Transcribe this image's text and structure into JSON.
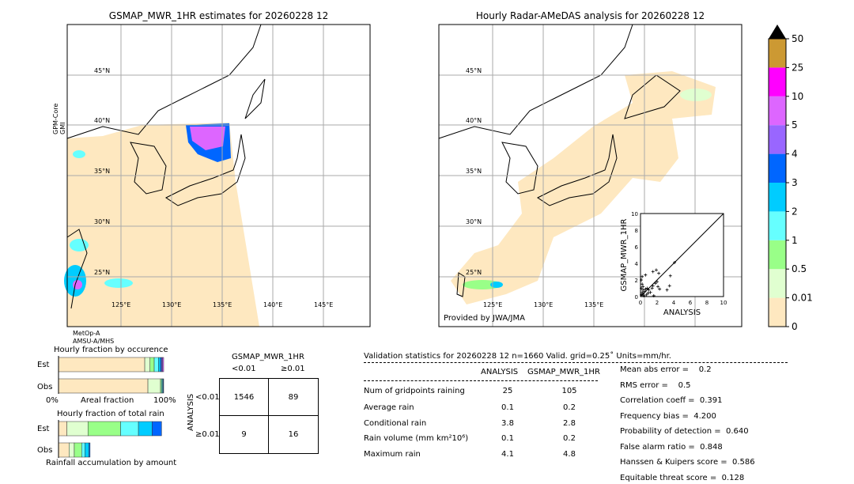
{
  "left_map": {
    "title": "GSMAP_MWR_1HR estimates for 20260228 12",
    "sensor_left": "GPM-Core\nGMI",
    "sensor_bottom_1": "MetOp-A",
    "sensor_bottom_2": "AMSU-A/MHS",
    "lat_labels": [
      "45°N",
      "40°N",
      "35°N",
      "30°N",
      "25°N"
    ],
    "lon_labels": [
      "125°E",
      "130°E",
      "135°E",
      "140°E",
      "145°E"
    ]
  },
  "right_map": {
    "title": "Hourly Radar-AMeDAS analysis for 20260228 12",
    "credit": "Provided by JWA/JMA",
    "lat_labels": [
      "45°N",
      "40°N",
      "35°N",
      "30°N",
      "25°N"
    ],
    "lon_labels": [
      "125°E",
      "130°E",
      "135°E"
    ]
  },
  "colorbar": {
    "levels": [
      "0",
      "0.01",
      "0.5",
      "1",
      "2",
      "3",
      "4",
      "5",
      "10",
      "25",
      "50"
    ],
    "colors": [
      "#fee8c0",
      "#e0ffd0",
      "#99ff88",
      "#66ffff",
      "#00ccff",
      "#0066ff",
      "#9966ff",
      "#dd66ff",
      "#ff00ff",
      "#cc9933"
    ],
    "extend_color": "#000000"
  },
  "chart_data": {
    "type": "scatter",
    "xlabel": "ANALYSIS",
    "ylabel": "GSMAP_MWR_1HR",
    "xlim": [
      0,
      10
    ],
    "ylim": [
      0,
      10
    ],
    "ticks": [
      "0",
      "2",
      "4",
      "6",
      "8",
      "10"
    ],
    "points": [
      [
        0.1,
        0.2
      ],
      [
        0.2,
        0.5
      ],
      [
        0.3,
        0.8
      ],
      [
        0.1,
        1.0
      ],
      [
        0.2,
        1.5
      ],
      [
        0.1,
        2.0
      ],
      [
        0.3,
        0.3
      ],
      [
        0.5,
        0.6
      ],
      [
        0.6,
        0.9
      ],
      [
        0.8,
        1.0
      ],
      [
        1.0,
        0.8
      ],
      [
        1.2,
        0.5
      ],
      [
        1.4,
        1.0
      ],
      [
        1.5,
        1.3
      ],
      [
        1.6,
        0.1
      ],
      [
        1.8,
        1.6
      ],
      [
        2.0,
        1.8
      ],
      [
        2.1,
        1.2
      ],
      [
        2.3,
        0.9
      ],
      [
        1.5,
        3.0
      ],
      [
        1.9,
        3.2
      ],
      [
        2.2,
        2.8
      ],
      [
        0.6,
        2.6
      ],
      [
        3.2,
        0.8
      ],
      [
        3.5,
        1.3
      ],
      [
        3.6,
        2.5
      ],
      [
        4.1,
        4.1
      ],
      [
        0.9,
        0.4
      ],
      [
        0.4,
        0.1
      ],
      [
        0.7,
        0.2
      ],
      [
        0.2,
        2.4
      ],
      [
        0.3,
        1.2
      ]
    ]
  },
  "occurrence": {
    "title": "Hourly fraction by occurence",
    "est": "Est",
    "obs": "Obs",
    "x0": "0%",
    "xlabel": "Areal fraction",
    "x1": "100%",
    "est_fractions": [
      0.82,
      0.05,
      0.04,
      0.04,
      0.02,
      0.01,
      0.01,
      0.01
    ],
    "obs_fractions": [
      0.85,
      0.12,
      0.01,
      0.01,
      0.005,
      0.005
    ]
  },
  "total_rain": {
    "title": "Hourly fraction of total rain",
    "est": "Est",
    "obs": "Obs",
    "footer": "Rainfall accumulation by amount",
    "est_fractions": [
      0.08,
      0.2,
      0.31,
      0.17,
      0.13,
      0.09
    ],
    "obs_fractions": [
      0.1,
      0.05,
      0.07,
      0.03,
      0.04,
      0.01
    ]
  },
  "contingency": {
    "title": "GSMAP_MWR_1HR",
    "col1": "<0.01",
    "col2": "≥0.01",
    "row_label": "ANALYSIS",
    "row1": "<0.01",
    "row2": "≥0.01",
    "cells": [
      "1546",
      "89",
      "9",
      "16"
    ]
  },
  "stats": {
    "header": "Validation statistics for 20260228 12  n=1660 Valid. grid=0.25˚ Units=mm/hr.",
    "col1": "ANALYSIS",
    "col2": "GSMAP_MWR_1HR",
    "rows": [
      {
        "label": "Num of gridpoints raining",
        "a": "25",
        "g": "105"
      },
      {
        "label": "Average rain",
        "a": "0.1",
        "g": "0.2"
      },
      {
        "label": "Conditional rain",
        "a": "3.8",
        "g": "2.8"
      },
      {
        "label": "Rain volume (mm km²10⁶)",
        "a": "0.1",
        "g": "0.2"
      },
      {
        "label": "Maximum rain",
        "a": "4.1",
        "g": "4.8"
      }
    ],
    "scores": [
      "Mean abs error =    0.2",
      "RMS error =    0.5",
      "Correlation coeff =  0.391",
      "Frequency bias =  4.200",
      "Probability of detection =  0.640",
      "False alarm ratio =  0.848",
      "Hanssen & Kuipers score =  0.586",
      "Equitable threat score =  0.128"
    ]
  }
}
